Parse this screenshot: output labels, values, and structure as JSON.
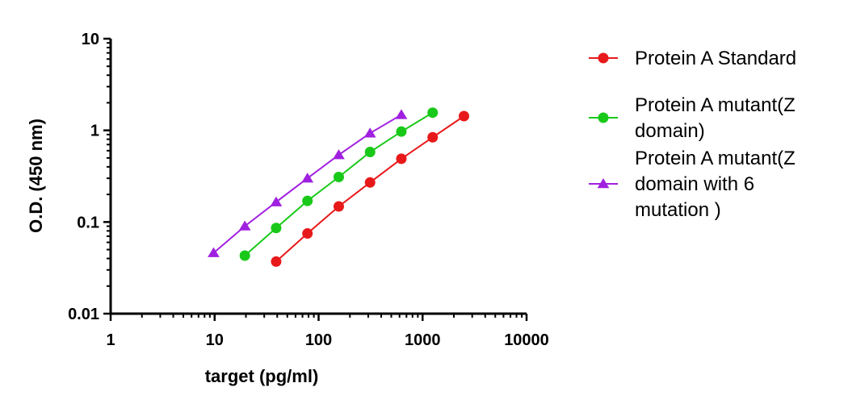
{
  "chart_data": {
    "type": "line",
    "xlabel": "target (pg/ml)",
    "ylabel": "O.D. (450 nm)",
    "xscale": "log",
    "yscale": "log",
    "xlim": [
      1,
      10000
    ],
    "ylim": [
      0.01,
      10
    ],
    "x_tick_labels": [
      "1",
      "10",
      "100",
      "1000",
      "10000"
    ],
    "y_tick_labels": [
      "0.01",
      "0.1",
      "1",
      "10"
    ],
    "legend_position": "right",
    "series": [
      {
        "name_lines": [
          "Protein A Standard"
        ],
        "color": "#e8191a",
        "marker": "circle",
        "x": [
          39.06,
          78.13,
          156.25,
          312.5,
          625,
          1250,
          2500
        ],
        "y": [
          0.037,
          0.075,
          0.148,
          0.27,
          0.49,
          0.84,
          1.43
        ]
      },
      {
        "name_lines": [
          "Protein A mutant(Z",
          "domain)"
        ],
        "color": "#19c919",
        "marker": "circle",
        "x": [
          19.53,
          39.06,
          78.13,
          156.25,
          312.5,
          625,
          1250
        ],
        "y": [
          0.043,
          0.086,
          0.17,
          0.31,
          0.58,
          0.97,
          1.56
        ]
      },
      {
        "name_lines": [
          "Protein A mutant(Z",
          "domain with 6",
          "mutation )"
        ],
        "color": "#a020e0",
        "marker": "triangle",
        "x": [
          9.77,
          19.53,
          39.06,
          78.13,
          156.25,
          312.5,
          625
        ],
        "y": [
          0.046,
          0.09,
          0.165,
          0.3,
          0.54,
          0.93,
          1.48
        ]
      }
    ]
  }
}
